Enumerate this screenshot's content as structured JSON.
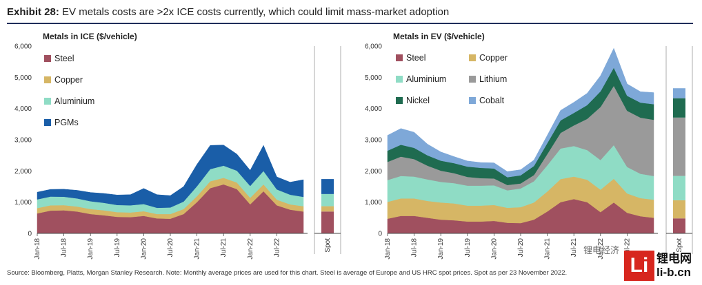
{
  "header": {
    "exhibit_label": "Exhibit 28:",
    "title": "EV metals costs are >2x ICE costs currently, which could limit mass-market adoption"
  },
  "footer": {
    "source": "Source: Bloomberg, Platts, Morgan Stanley Research. Note: Monthly average prices are used for this chart. Steel is average of Europe and US HRC spot prices. Spot as per 23 November 2022.",
    "watermark_logo": "Li",
    "watermark_cn": "锂电网",
    "watermark_url": "li-b.cn",
    "watermark_channel": "锂电经济"
  },
  "chart_data": [
    {
      "type": "area",
      "stacked": true,
      "title": "Metals in ICE ($/vehicle)",
      "ylim": [
        0,
        6000
      ],
      "yticks": [
        0,
        1000,
        2000,
        3000,
        4000,
        5000,
        6000
      ],
      "ytick_labels": [
        "0",
        "1,000",
        "2,000",
        "3,000",
        "4,000",
        "5,000",
        "6,000"
      ],
      "xtick_labels": [
        "Jan-18",
        "Jul-18",
        "Jan-19",
        "Jul-19",
        "Jan-20",
        "Jul-20",
        "Jan-21",
        "Jul-21",
        "Jan-22",
        "Jul-22"
      ],
      "spot_label": "Spot",
      "legend_position": "top-left",
      "x": [
        "Jan-18",
        "Apr-18",
        "Jul-18",
        "Oct-18",
        "Jan-19",
        "Apr-19",
        "Jul-19",
        "Oct-19",
        "Jan-20",
        "Apr-20",
        "Jul-20",
        "Oct-20",
        "Jan-21",
        "Apr-21",
        "Jul-21",
        "Oct-21",
        "Jan-22",
        "Apr-22",
        "Jul-22",
        "Oct-22",
        "Nov-22"
      ],
      "series": [
        {
          "name": "Steel",
          "color": "#a0505f",
          "values": [
            640,
            730,
            740,
            700,
            620,
            580,
            530,
            520,
            560,
            480,
            470,
            620,
            1000,
            1450,
            1570,
            1420,
            930,
            1350,
            900,
            760,
            700
          ]
        },
        {
          "name": "Copper",
          "color": "#d6b665",
          "values": [
            170,
            170,
            165,
            160,
            160,
            160,
            150,
            150,
            150,
            140,
            150,
            160,
            190,
            220,
            210,
            210,
            210,
            220,
            180,
            170,
            170
          ]
        },
        {
          "name": "Aluminium",
          "color": "#8fdcc5",
          "values": [
            280,
            280,
            270,
            260,
            250,
            240,
            230,
            230,
            230,
            200,
            210,
            240,
            320,
            390,
            390,
            380,
            380,
            430,
            330,
            310,
            300
          ]
        },
        {
          "name": "PGMs",
          "color": "#1a5ea8",
          "values": [
            230,
            230,
            240,
            260,
            280,
            300,
            320,
            340,
            500,
            420,
            380,
            480,
            700,
            760,
            660,
            530,
            500,
            820,
            400,
            400,
            550
          ]
        }
      ],
      "spot": [
        {
          "name": "Steel",
          "value": 700
        },
        {
          "name": "Copper",
          "value": 170
        },
        {
          "name": "Aluminium",
          "value": 390
        },
        {
          "name": "PGMs",
          "value": 480
        }
      ]
    },
    {
      "type": "area",
      "stacked": true,
      "title": "Metals in EV ($/vehicle)",
      "ylim": [
        0,
        6000
      ],
      "yticks": [
        0,
        1000,
        2000,
        3000,
        4000,
        5000,
        6000
      ],
      "ytick_labels": [
        "0",
        "1,000",
        "2,000",
        "3,000",
        "4,000",
        "5,000",
        "6,000"
      ],
      "xtick_labels": [
        "Jan-18",
        "Jul-18",
        "Jan-19",
        "Jul-19",
        "Jan-20",
        "Jul-20",
        "Jan-21",
        "Jul-21",
        "Jan-22",
        "Jul-22"
      ],
      "spot_label": "Spot",
      "legend_position": "top-left",
      "x": [
        "Jan-18",
        "Apr-18",
        "Jul-18",
        "Oct-18",
        "Jan-19",
        "Apr-19",
        "Jul-19",
        "Oct-19",
        "Jan-20",
        "Apr-20",
        "Jul-20",
        "Oct-20",
        "Jan-21",
        "Apr-21",
        "Jul-21",
        "Oct-21",
        "Jan-22",
        "Apr-22",
        "Jul-22",
        "Oct-22",
        "Nov-22"
      ],
      "series": [
        {
          "name": "Steel",
          "color": "#a0505f",
          "values": [
            470,
            560,
            560,
            500,
            440,
            420,
            380,
            380,
            400,
            340,
            330,
            440,
            700,
            1000,
            1100,
            1000,
            680,
            990,
            660,
            550,
            500
          ]
        },
        {
          "name": "Copper",
          "color": "#d6b665",
          "values": [
            540,
            560,
            560,
            540,
            550,
            540,
            510,
            510,
            510,
            480,
            510,
            550,
            640,
            740,
            720,
            720,
            720,
            760,
            620,
            580,
            580
          ]
        },
        {
          "name": "Aluminium",
          "color": "#8fdcc5",
          "values": [
            700,
            720,
            700,
            690,
            660,
            650,
            640,
            640,
            630,
            560,
            600,
            680,
            840,
            980,
            980,
            950,
            950,
            1080,
            850,
            780,
            760
          ]
        },
        {
          "name": "Lithium",
          "color": "#9a9a9a",
          "values": [
            580,
            620,
            560,
            440,
            360,
            320,
            280,
            240,
            220,
            170,
            160,
            200,
            360,
            500,
            660,
            1000,
            1700,
            1900,
            1800,
            1800,
            1800
          ]
        },
        {
          "name": "Nickel",
          "color": "#1f6b50",
          "values": [
            360,
            380,
            360,
            330,
            320,
            320,
            330,
            330,
            320,
            250,
            260,
            290,
            350,
            400,
            400,
            440,
            500,
            580,
            480,
            480,
            500
          ]
        },
        {
          "name": "Cobalt",
          "color": "#7ea8d8",
          "values": [
            490,
            520,
            500,
            360,
            280,
            210,
            180,
            170,
            180,
            180,
            180,
            190,
            250,
            320,
            340,
            380,
            500,
            620,
            380,
            350,
            370
          ]
        }
      ],
      "spot": [
        {
          "name": "Steel",
          "value": 480
        },
        {
          "name": "Copper",
          "value": 580
        },
        {
          "name": "Aluminium",
          "value": 780
        },
        {
          "name": "Lithium",
          "value": 1870
        },
        {
          "name": "Nickel",
          "value": 620
        },
        {
          "name": "Cobalt",
          "value": 320
        }
      ]
    }
  ]
}
